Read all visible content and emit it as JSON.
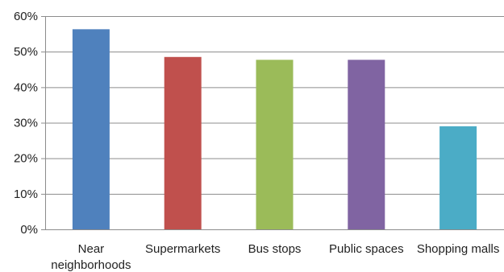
{
  "chart_data": {
    "type": "bar",
    "title": "",
    "xlabel": "",
    "ylabel": "",
    "categories": [
      [
        "Near",
        "neighborhoods"
      ],
      [
        "Supermarkets"
      ],
      [
        "Bus stops"
      ],
      [
        "Public spaces"
      ],
      [
        "Shopping malls"
      ]
    ],
    "values": [
      56.3,
      48.5,
      47.7,
      47.7,
      29.0
    ],
    "colors": [
      "#4f81bd",
      "#c0504d",
      "#9bbb59",
      "#8064a2",
      "#4bacc6"
    ],
    "ylim": [
      0,
      60
    ],
    "yticks": [
      0,
      10,
      20,
      30,
      40,
      50,
      60
    ],
    "ytick_labels": [
      "0%",
      "10%",
      "20%",
      "30%",
      "40%",
      "50%",
      "60%"
    ],
    "grid": true,
    "legend": "none"
  }
}
